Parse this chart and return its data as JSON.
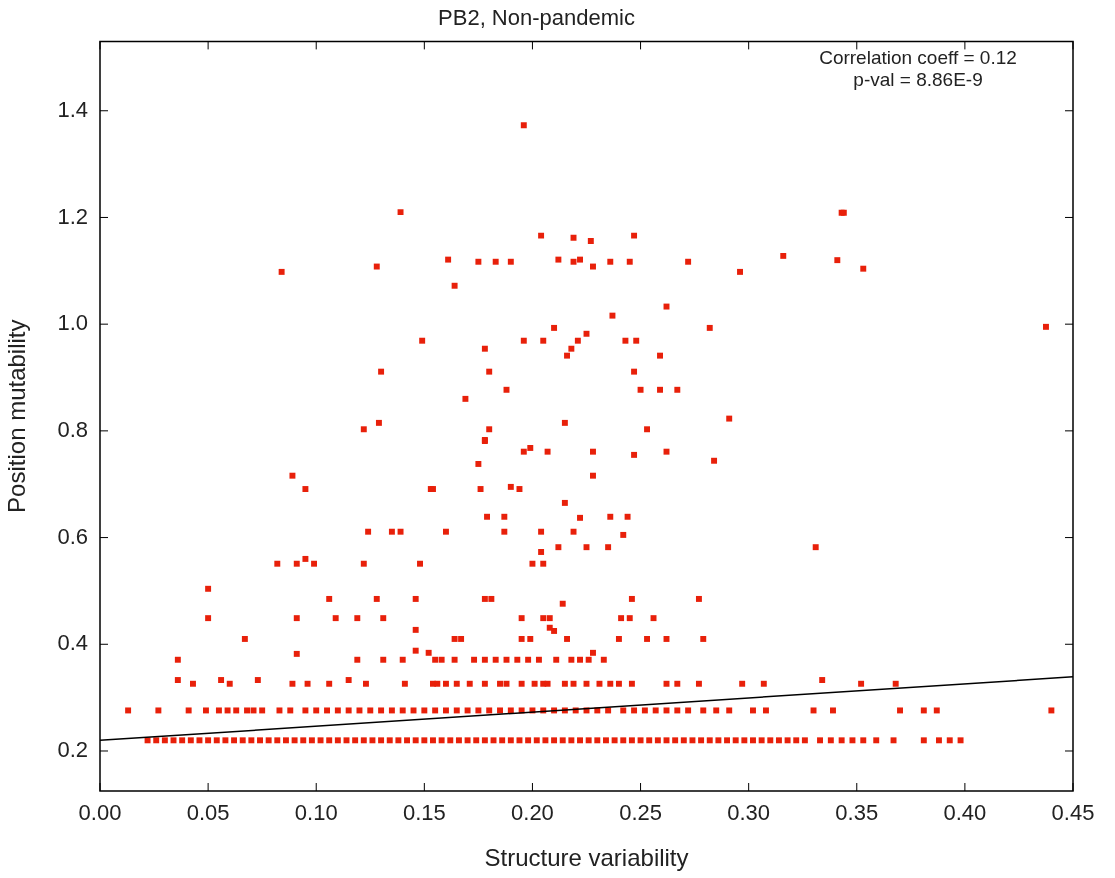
{
  "chart_data": {
    "type": "scatter",
    "title": "PB2, Non-pandemic",
    "xlabel": "Structure variability",
    "ylabel": "Position mutability",
    "annotations": [
      "Correlation coeff = 0.12",
      "p-val = 8.86E-9"
    ],
    "xlim": [
      0,
      0.45
    ],
    "ylim": [
      0.125,
      1.53
    ],
    "xticks": [
      {
        "value": 0,
        "label": "0.00"
      },
      {
        "value": 0.05,
        "label": "0.05"
      },
      {
        "value": 0.1,
        "label": "0.10"
      },
      {
        "value": 0.15,
        "label": "0.15"
      },
      {
        "value": 0.2,
        "label": "0.20"
      },
      {
        "value": 0.25,
        "label": "0.25"
      },
      {
        "value": 0.3,
        "label": "0.30"
      },
      {
        "value": 0.35,
        "label": "0.35"
      },
      {
        "value": 0.4,
        "label": "0.40"
      },
      {
        "value": 0.45,
        "label": "0.45"
      }
    ],
    "yticks": [
      0.2,
      0.4,
      0.6,
      0.8,
      {
        "value": 1.0,
        "label": "1.0"
      },
      1.2,
      1.4
    ],
    "grid": false,
    "legend": false,
    "marker": "square",
    "series": [
      {
        "type": "scatter",
        "color": "#e8200a",
        "x": [
          0.196,
          0.139,
          0.343,
          0.344,
          0.084,
          0.128,
          0.316,
          0.341,
          0.353,
          0.4375,
          0.204,
          0.219,
          0.227,
          0.247,
          0.161,
          0.175,
          0.183,
          0.19,
          0.212,
          0.219,
          0.222,
          0.228,
          0.236,
          0.245,
          0.272,
          0.296,
          0.164,
          0.262,
          0.237,
          0.21,
          0.282,
          0.196,
          0.205,
          0.221,
          0.225,
          0.243,
          0.248,
          0.218,
          0.216,
          0.259,
          0.178,
          0.18,
          0.247,
          0.188,
          0.25,
          0.259,
          0.267,
          0.169,
          0.215,
          0.253,
          0.291,
          0.18,
          0.178,
          0.149,
          0.13,
          0.129,
          0.122,
          0.178,
          0.196,
          0.199,
          0.207,
          0.228,
          0.247,
          0.262,
          0.284,
          0.175,
          0.228,
          0.154,
          0.176,
          0.19,
          0.194,
          0.215,
          0.179,
          0.187,
          0.222,
          0.236,
          0.244,
          0.16,
          0.187,
          0.204,
          0.219,
          0.242,
          0.212,
          0.225,
          0.235,
          0.204,
          0.2,
          0.205,
          0.331,
          0.089,
          0.095,
          0.153,
          0.124,
          0.135,
          0.139,
          0.082,
          0.091,
          0.095,
          0.099,
          0.122,
          0.148,
          0.05,
          0.05,
          0.091,
          0.106,
          0.109,
          0.119,
          0.128,
          0.131,
          0.146,
          0.146,
          0.067,
          0.091,
          0.178,
          0.181,
          0.214,
          0.246,
          0.277,
          0.195,
          0.205,
          0.208,
          0.208,
          0.21,
          0.241,
          0.245,
          0.256,
          0.164,
          0.167,
          0.195,
          0.199,
          0.216,
          0.24,
          0.253,
          0.262,
          0.279,
          0.036,
          0.119,
          0.131,
          0.14,
          0.146,
          0.152,
          0.155,
          0.158,
          0.164,
          0.173,
          0.178,
          0.183,
          0.188,
          0.193,
          0.198,
          0.203,
          0.211,
          0.218,
          0.222,
          0.226,
          0.228,
          0.233,
          0.036,
          0.056,
          0.073,
          0.115,
          0.334,
          0.043,
          0.06,
          0.089,
          0.096,
          0.106,
          0.123,
          0.141,
          0.154,
          0.156,
          0.16,
          0.165,
          0.171,
          0.178,
          0.185,
          0.188,
          0.195,
          0.201,
          0.205,
          0.207,
          0.215,
          0.219,
          0.225,
          0.231,
          0.236,
          0.24,
          0.246,
          0.262,
          0.267,
          0.277,
          0.297,
          0.307,
          0.352,
          0.368,
          0.013,
          0.027,
          0.041,
          0.049,
          0.055,
          0.059,
          0.063,
          0.068,
          0.071,
          0.075,
          0.083,
          0.088,
          0.095,
          0.1,
          0.105,
          0.11,
          0.115,
          0.12,
          0.125,
          0.13,
          0.135,
          0.14,
          0.145,
          0.15,
          0.155,
          0.16,
          0.165,
          0.17,
          0.175,
          0.18,
          0.185,
          0.19,
          0.195,
          0.2,
          0.205,
          0.21,
          0.215,
          0.22,
          0.225,
          0.23,
          0.235,
          0.242,
          0.247,
          0.252,
          0.257,
          0.262,
          0.267,
          0.272,
          0.279,
          0.285,
          0.291,
          0.302,
          0.308,
          0.33,
          0.339,
          0.37,
          0.381,
          0.387,
          0.44,
          0.022,
          0.026,
          0.03,
          0.034,
          0.038,
          0.042,
          0.046,
          0.05,
          0.054,
          0.058,
          0.062,
          0.066,
          0.07,
          0.074,
          0.078,
          0.082,
          0.086,
          0.09,
          0.094,
          0.098,
          0.102,
          0.106,
          0.11,
          0.114,
          0.118,
          0.122,
          0.126,
          0.13,
          0.134,
          0.138,
          0.142,
          0.146,
          0.15,
          0.154,
          0.158,
          0.162,
          0.166,
          0.17,
          0.174,
          0.178,
          0.182,
          0.186,
          0.19,
          0.194,
          0.198,
          0.202,
          0.206,
          0.21,
          0.214,
          0.218,
          0.222,
          0.226,
          0.23,
          0.234,
          0.238,
          0.242,
          0.246,
          0.25,
          0.254,
          0.258,
          0.262,
          0.266,
          0.27,
          0.274,
          0.278,
          0.282,
          0.286,
          0.29,
          0.294,
          0.298,
          0.302,
          0.306,
          0.31,
          0.314,
          0.318,
          0.322,
          0.326,
          0.333,
          0.338,
          0.343,
          0.348,
          0.353,
          0.359,
          0.367,
          0.381,
          0.388,
          0.393,
          0.398
        ],
        "values": [
          1.373,
          1.21,
          1.209,
          1.209,
          1.098,
          1.108,
          1.128,
          1.12,
          1.104,
          0.995,
          1.166,
          1.162,
          1.156,
          1.166,
          1.121,
          1.117,
          1.117,
          1.117,
          1.121,
          1.117,
          1.121,
          1.108,
          1.117,
          1.117,
          1.117,
          1.098,
          1.072,
          1.033,
          1.016,
          0.993,
          0.993,
          0.969,
          0.969,
          0.969,
          0.982,
          0.969,
          0.969,
          0.954,
          0.941,
          0.941,
          0.954,
          0.911,
          0.911,
          0.877,
          0.877,
          0.877,
          0.877,
          0.86,
          0.815,
          0.803,
          0.823,
          0.803,
          0.783,
          0.969,
          0.911,
          0.815,
          0.803,
          0.781,
          0.761,
          0.768,
          0.761,
          0.761,
          0.755,
          0.761,
          0.744,
          0.738,
          0.716,
          0.691,
          0.691,
          0.695,
          0.691,
          0.665,
          0.639,
          0.639,
          0.637,
          0.639,
          0.639,
          0.611,
          0.611,
          0.611,
          0.611,
          0.605,
          0.582,
          0.582,
          0.582,
          0.573,
          0.551,
          0.551,
          0.582,
          0.716,
          0.691,
          0.691,
          0.611,
          0.611,
          0.611,
          0.551,
          0.551,
          0.56,
          0.551,
          0.551,
          0.551,
          0.504,
          0.449,
          0.449,
          0.485,
          0.449,
          0.449,
          0.485,
          0.449,
          0.485,
          0.427,
          0.41,
          0.382,
          0.485,
          0.485,
          0.476,
          0.485,
          0.485,
          0.449,
          0.449,
          0.449,
          0.431,
          0.425,
          0.449,
          0.449,
          0.449,
          0.41,
          0.41,
          0.41,
          0.41,
          0.41,
          0.41,
          0.41,
          0.41,
          0.41,
          0.371,
          0.371,
          0.371,
          0.371,
          0.388,
          0.384,
          0.371,
          0.371,
          0.371,
          0.371,
          0.371,
          0.371,
          0.371,
          0.371,
          0.371,
          0.371,
          0.371,
          0.371,
          0.371,
          0.371,
          0.384,
          0.371,
          0.333,
          0.333,
          0.333,
          0.333,
          0.333,
          0.326,
          0.326,
          0.326,
          0.326,
          0.326,
          0.326,
          0.326,
          0.326,
          0.326,
          0.326,
          0.326,
          0.326,
          0.326,
          0.326,
          0.326,
          0.326,
          0.326,
          0.326,
          0.326,
          0.326,
          0.326,
          0.326,
          0.326,
          0.326,
          0.326,
          0.326,
          0.326,
          0.326,
          0.326,
          0.326,
          0.326,
          0.326,
          0.326,
          0.276,
          0.276,
          0.276,
          0.276,
          0.276,
          0.276,
          0.276,
          0.276,
          0.276,
          0.276,
          0.276,
          0.276,
          0.276,
          0.276,
          0.276,
          0.276,
          0.276,
          0.276,
          0.276,
          0.276,
          0.276,
          0.276,
          0.276,
          0.276,
          0.276,
          0.276,
          0.276,
          0.276,
          0.276,
          0.276,
          0.276,
          0.276,
          0.276,
          0.276,
          0.276,
          0.276,
          0.276,
          0.276,
          0.276,
          0.276,
          0.276,
          0.276,
          0.276,
          0.276,
          0.276,
          0.276,
          0.276,
          0.276,
          0.276,
          0.276,
          0.276,
          0.276,
          0.276,
          0.276,
          0.276,
          0.276,
          0.276,
          0.276,
          0.276,
          0.22,
          0.22,
          0.22,
          0.22,
          0.22,
          0.22,
          0.22,
          0.22,
          0.22,
          0.22,
          0.22,
          0.22,
          0.22,
          0.22,
          0.22,
          0.22,
          0.22,
          0.22,
          0.22,
          0.22,
          0.22,
          0.22,
          0.22,
          0.22,
          0.22,
          0.22,
          0.22,
          0.22,
          0.22,
          0.22,
          0.22,
          0.22,
          0.22,
          0.22,
          0.22,
          0.22,
          0.22,
          0.22,
          0.22,
          0.22,
          0.22,
          0.22,
          0.22,
          0.22,
          0.22,
          0.22,
          0.22,
          0.22,
          0.22,
          0.22,
          0.22,
          0.22,
          0.22,
          0.22,
          0.22,
          0.22,
          0.22,
          0.22,
          0.22,
          0.22,
          0.22,
          0.22,
          0.22,
          0.22,
          0.22,
          0.22,
          0.22,
          0.22,
          0.22,
          0.22,
          0.22,
          0.22,
          0.22,
          0.22,
          0.22,
          0.22,
          0.22,
          0.22,
          0.22,
          0.22,
          0.22,
          0.22,
          0.22,
          0.22,
          0.22,
          0.22,
          0.22,
          0.22
        ]
      },
      {
        "type": "line",
        "color": "#000000",
        "marker": "none",
        "x": [
          0,
          0.45
        ],
        "values": [
          0.22,
          0.339
        ]
      }
    ]
  }
}
